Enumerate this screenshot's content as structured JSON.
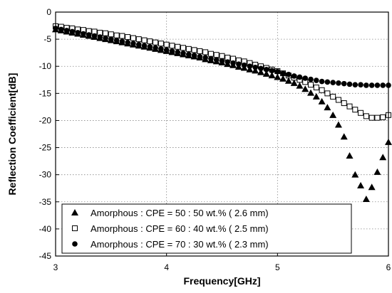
{
  "chart_data": {
    "type": "scatter",
    "title": "",
    "xlabel": "Frequency[GHz]",
    "ylabel": "Reflection Coefficient[dB]",
    "xlim": [
      3,
      6
    ],
    "ylim": [
      -45,
      0
    ],
    "xticks": [
      3,
      4,
      5,
      6
    ],
    "yticks": [
      0,
      -5,
      -10,
      -15,
      -20,
      -25,
      -30,
      -35,
      -40,
      -45
    ],
    "grid": true,
    "legend_position": "bottom-left",
    "series": [
      {
        "name": "Amorphous : CPE = 50 : 50 wt.% ( 2.6 mm)",
        "marker": "filled-triangle",
        "color": "#000000",
        "x": [
          3.0,
          3.05,
          3.1,
          3.15,
          3.2,
          3.25,
          3.3,
          3.35,
          3.4,
          3.45,
          3.5,
          3.55,
          3.6,
          3.65,
          3.7,
          3.75,
          3.8,
          3.85,
          3.9,
          3.95,
          4.0,
          4.05,
          4.1,
          4.15,
          4.2,
          4.25,
          4.3,
          4.35,
          4.4,
          4.45,
          4.5,
          4.55,
          4.6,
          4.65,
          4.7,
          4.75,
          4.8,
          4.85,
          4.9,
          4.95,
          5.0,
          5.05,
          5.1,
          5.15,
          5.2,
          5.25,
          5.3,
          5.35,
          5.4,
          5.45,
          5.5,
          5.55,
          5.6,
          5.65,
          5.7,
          5.75,
          5.8,
          5.85,
          5.9,
          5.95,
          6.0
        ],
        "y": [
          -3.2,
          -3.4,
          -3.6,
          -3.8,
          -4.0,
          -4.2,
          -4.4,
          -4.6,
          -4.8,
          -5.0,
          -5.2,
          -5.4,
          -5.6,
          -5.8,
          -6.0,
          -6.2,
          -6.4,
          -6.6,
          -6.8,
          -7.0,
          -7.2,
          -7.4,
          -7.6,
          -7.8,
          -8.0,
          -8.2,
          -8.4,
          -8.7,
          -8.9,
          -9.1,
          -9.3,
          -9.6,
          -9.8,
          -10.1,
          -10.3,
          -10.6,
          -10.8,
          -11.1,
          -11.4,
          -11.7,
          -12.0,
          -12.3,
          -12.7,
          -13.1,
          -13.6,
          -14.2,
          -14.9,
          -15.6,
          -16.5,
          -17.6,
          -19.0,
          -20.8,
          -23.0,
          -26.5,
          -30.0,
          -32.0,
          -34.5,
          -32.3,
          -29.5,
          -26.8,
          -24.0
        ]
      },
      {
        "name": "Amorphous : CPE = 60 : 40 wt.% ( 2.5 mm)",
        "marker": "open-square",
        "color": "#000000",
        "x": [
          3.0,
          3.05,
          3.1,
          3.15,
          3.2,
          3.25,
          3.3,
          3.35,
          3.4,
          3.45,
          3.5,
          3.55,
          3.6,
          3.65,
          3.7,
          3.75,
          3.8,
          3.85,
          3.9,
          3.95,
          4.0,
          4.05,
          4.1,
          4.15,
          4.2,
          4.25,
          4.3,
          4.35,
          4.4,
          4.45,
          4.5,
          4.55,
          4.6,
          4.65,
          4.7,
          4.75,
          4.8,
          4.85,
          4.9,
          4.95,
          5.0,
          5.05,
          5.1,
          5.15,
          5.2,
          5.25,
          5.3,
          5.35,
          5.4,
          5.45,
          5.5,
          5.55,
          5.6,
          5.65,
          5.7,
          5.75,
          5.8,
          5.85,
          5.9,
          5.95,
          6.0
        ],
        "y": [
          -2.6,
          -2.7,
          -2.9,
          -3.0,
          -3.2,
          -3.3,
          -3.5,
          -3.6,
          -3.8,
          -3.9,
          -4.1,
          -4.3,
          -4.4,
          -4.6,
          -4.8,
          -5.0,
          -5.2,
          -5.4,
          -5.6,
          -5.8,
          -6.0,
          -6.2,
          -6.4,
          -6.6,
          -6.8,
          -7.0,
          -7.2,
          -7.4,
          -7.7,
          -7.9,
          -8.1,
          -8.4,
          -8.6,
          -8.9,
          -9.1,
          -9.4,
          -9.7,
          -10.0,
          -10.3,
          -10.6,
          -10.9,
          -11.3,
          -11.7,
          -12.1,
          -12.5,
          -12.9,
          -13.4,
          -13.9,
          -14.4,
          -15.0,
          -15.6,
          -16.2,
          -16.8,
          -17.4,
          -18.0,
          -18.6,
          -19.2,
          -19.5,
          -19.5,
          -19.4,
          -19.0
        ]
      },
      {
        "name": "Amorphous : CPE = 70 : 30 wt.% ( 2.3 mm)",
        "marker": "filled-circle",
        "color": "#000000",
        "x": [
          3.0,
          3.05,
          3.1,
          3.15,
          3.2,
          3.25,
          3.3,
          3.35,
          3.4,
          3.45,
          3.5,
          3.55,
          3.6,
          3.65,
          3.7,
          3.75,
          3.8,
          3.85,
          3.9,
          3.95,
          4.0,
          4.05,
          4.1,
          4.15,
          4.2,
          4.25,
          4.3,
          4.35,
          4.4,
          4.45,
          4.5,
          4.55,
          4.6,
          4.65,
          4.7,
          4.75,
          4.8,
          4.85,
          4.9,
          4.95,
          5.0,
          5.05,
          5.1,
          5.15,
          5.2,
          5.25,
          5.3,
          5.35,
          5.4,
          5.45,
          5.5,
          5.55,
          5.6,
          5.65,
          5.7,
          5.75,
          5.8,
          5.85,
          5.9,
          5.95,
          6.0
        ],
        "y": [
          -3.0,
          -3.2,
          -3.4,
          -3.6,
          -3.8,
          -4.0,
          -4.2,
          -4.4,
          -4.6,
          -4.8,
          -5.0,
          -5.2,
          -5.4,
          -5.6,
          -5.8,
          -6.0,
          -6.2,
          -6.4,
          -6.6,
          -6.8,
          -7.0,
          -7.2,
          -7.4,
          -7.6,
          -7.8,
          -8.0,
          -8.2,
          -8.4,
          -8.6,
          -8.8,
          -9.0,
          -9.2,
          -9.4,
          -9.6,
          -9.8,
          -10.0,
          -10.2,
          -10.4,
          -10.6,
          -10.8,
          -11.0,
          -11.3,
          -11.5,
          -11.8,
          -12.0,
          -12.2,
          -12.4,
          -12.6,
          -12.8,
          -12.9,
          -13.0,
          -13.1,
          -13.2,
          -13.3,
          -13.4,
          -13.4,
          -13.5,
          -13.5,
          -13.5,
          -13.5,
          -13.5
        ]
      }
    ]
  }
}
